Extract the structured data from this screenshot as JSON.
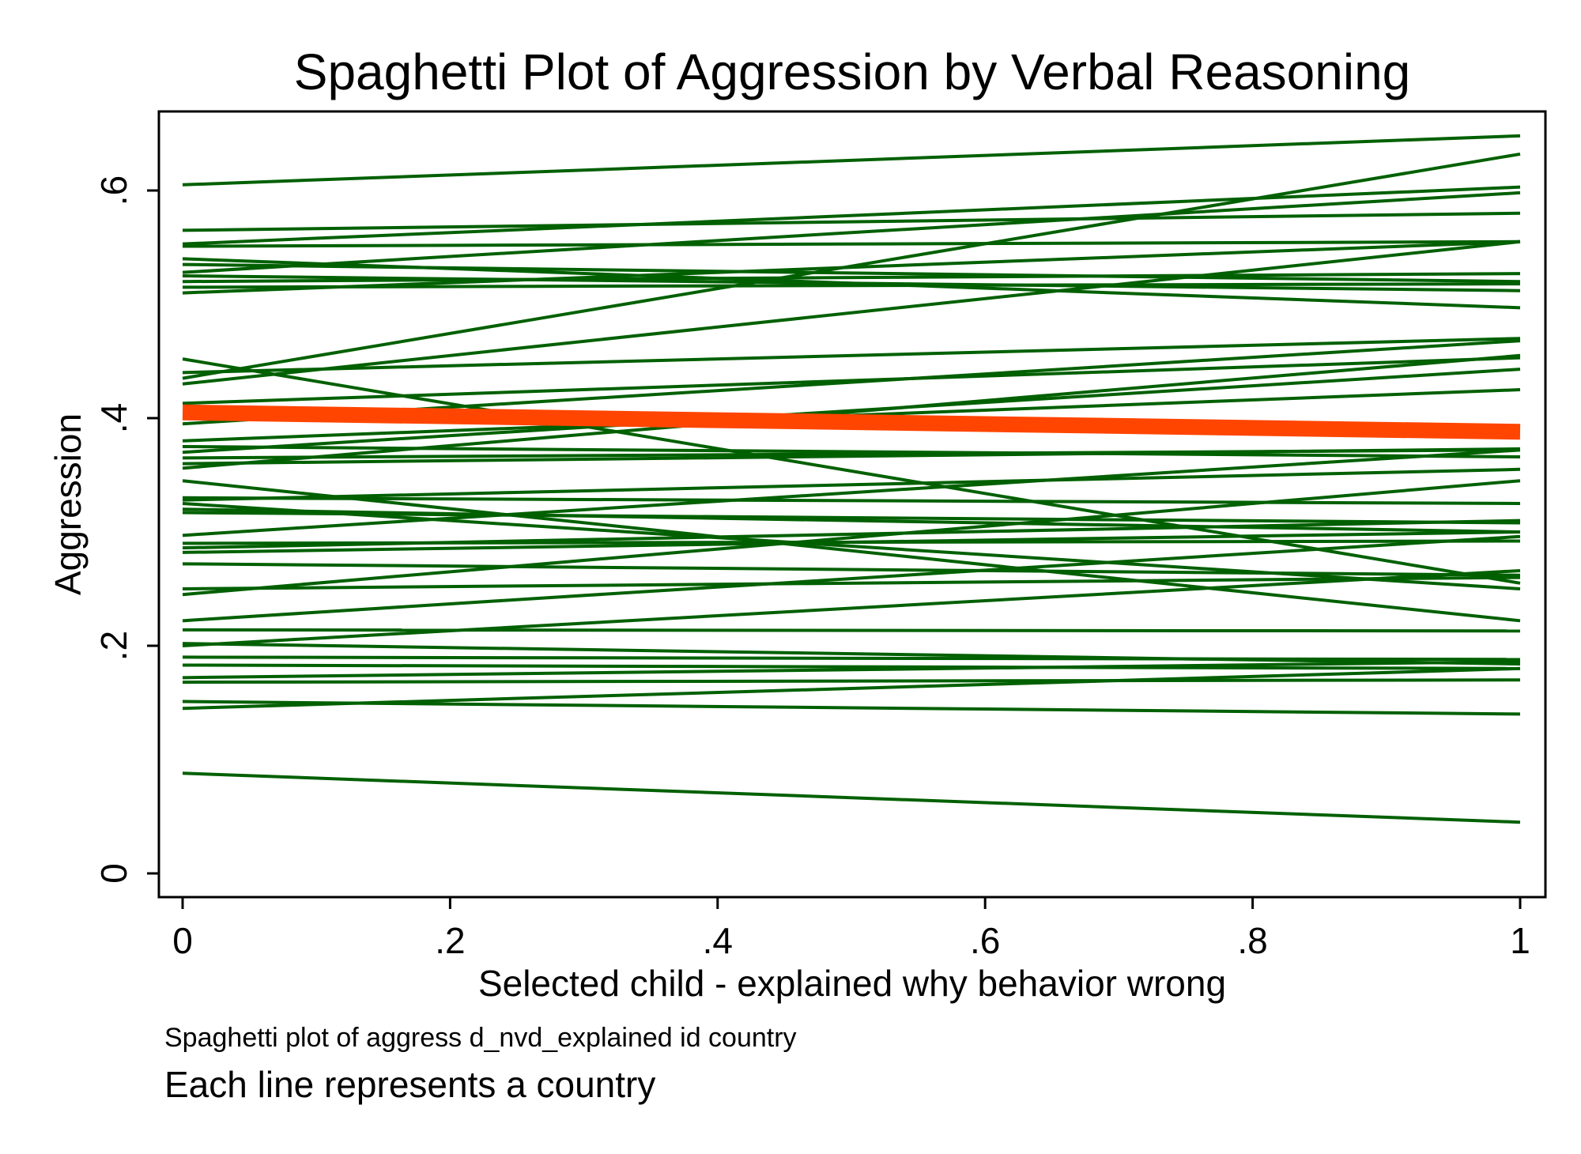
{
  "chart_data": {
    "type": "line",
    "title": "Spaghetti Plot of Aggression by Verbal Reasoning",
    "xlabel": "Selected child - explained why behavior wrong",
    "ylabel": "Aggression",
    "xlim": [
      0,
      1
    ],
    "ylim": [
      0,
      0.6
    ],
    "x_ticks": [
      0,
      0.2,
      0.4,
      0.6,
      0.8,
      1
    ],
    "x_tick_labels": [
      "0",
      ".2",
      ".4",
      ".6",
      ".8",
      "1"
    ],
    "y_ticks": [
      0,
      0.2,
      0.4,
      0.6
    ],
    "y_tick_labels": [
      "0",
      ".2",
      ".4",
      ".6"
    ],
    "grid": false,
    "notes": [
      "Spaghetti plot of aggress d_nvd_explained id country",
      "Each line represents a country"
    ],
    "colors": {
      "country_line": "#006000",
      "mean_line": "#ff4500"
    },
    "x": [
      0,
      1
    ],
    "series": [
      [
        0.605,
        0.648
      ],
      [
        0.565,
        0.58
      ],
      [
        0.553,
        0.603
      ],
      [
        0.551,
        0.555
      ],
      [
        0.54,
        0.497
      ],
      [
        0.535,
        0.52
      ],
      [
        0.528,
        0.598
      ],
      [
        0.525,
        0.512
      ],
      [
        0.52,
        0.527
      ],
      [
        0.515,
        0.518
      ],
      [
        0.51,
        0.555
      ],
      [
        0.452,
        0.255
      ],
      [
        0.44,
        0.47
      ],
      [
        0.435,
        0.632
      ],
      [
        0.43,
        0.555
      ],
      [
        0.413,
        0.453
      ],
      [
        0.395,
        0.468
      ],
      [
        0.38,
        0.425
      ],
      [
        0.375,
        0.366
      ],
      [
        0.37,
        0.443
      ],
      [
        0.365,
        0.372
      ],
      [
        0.36,
        0.373
      ],
      [
        0.356,
        0.455
      ],
      [
        0.345,
        0.222
      ],
      [
        0.33,
        0.325
      ],
      [
        0.328,
        0.355
      ],
      [
        0.325,
        0.25
      ],
      [
        0.32,
        0.3
      ],
      [
        0.317,
        0.308
      ],
      [
        0.297,
        0.372
      ],
      [
        0.29,
        0.292
      ],
      [
        0.286,
        0.31
      ],
      [
        0.282,
        0.3
      ],
      [
        0.272,
        0.262
      ],
      [
        0.25,
        0.26
      ],
      [
        0.245,
        0.345
      ],
      [
        0.222,
        0.296
      ],
      [
        0.214,
        0.213
      ],
      [
        0.202,
        0.184
      ],
      [
        0.2,
        0.266
      ],
      [
        0.19,
        0.188
      ],
      [
        0.183,
        0.18
      ],
      [
        0.172,
        0.186
      ],
      [
        0.168,
        0.17
      ],
      [
        0.151,
        0.14
      ],
      [
        0.145,
        0.18
      ],
      [
        0.088,
        0.045
      ]
    ],
    "mean_line": [
      0.405,
      0.388
    ]
  }
}
